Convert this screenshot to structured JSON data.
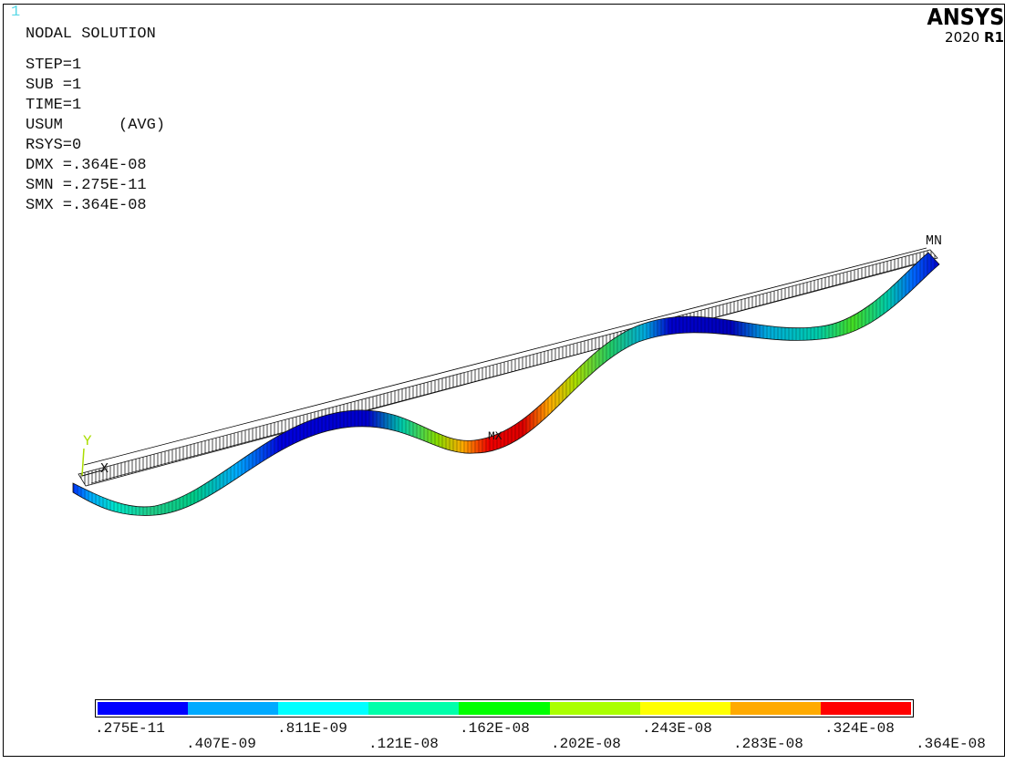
{
  "window_number": "1",
  "header": {
    "title": "NODAL SOLUTION",
    "lines": [
      "STEP=1",
      "SUB =1",
      "TIME=1",
      "USUM      (AVG)",
      "RSYS=0",
      "DMX =.364E-08",
      "SMN =.275E-11",
      "SMX =.364E-08"
    ]
  },
  "brand": {
    "name": "ANSYS",
    "version_year": "2020",
    "version_release": "R1"
  },
  "labels": {
    "min_marker": "MN",
    "max_marker": "MX",
    "axis_y": "Y",
    "axis_x": "X"
  },
  "legend": {
    "colors": [
      "#0000ff",
      "#00aaff",
      "#00ffff",
      "#00ffaa",
      "#00ff00",
      "#aaff00",
      "#ffff00",
      "#ffaa00",
      "#ff0000"
    ],
    "top_ticks": [
      ".275E-11",
      ".811E-09",
      ".162E-08",
      ".243E-08",
      ".324E-08"
    ],
    "bottom_ticks": [
      ".407E-09",
      ".121E-08",
      ".202E-08",
      ".283E-08",
      ".364E-08"
    ]
  }
}
